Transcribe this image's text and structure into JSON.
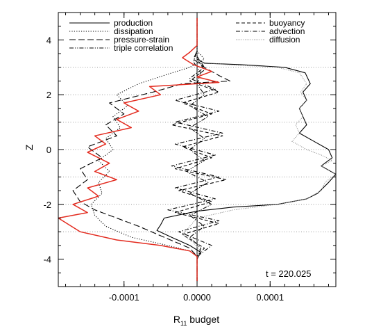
{
  "chart_data": {
    "type": "line",
    "xlabel_main": "R",
    "xlabel_sub": "11",
    "xlabel_rest": " budget",
    "ylabel": "Z",
    "annotation": "t = 220.025",
    "xlim": [
      -0.00019,
      0.00019
    ],
    "ylim": [
      -5,
      5
    ],
    "x_ticks": [
      {
        "value": -0.0001,
        "label": "-0.0001"
      },
      {
        "value": 0.0,
        "label": "0.0000"
      },
      {
        "value": 0.0001,
        "label": "0.0001"
      }
    ],
    "y_ticks": [
      {
        "value": -4,
        "label": "-4"
      },
      {
        "value": -2,
        "label": "-2"
      },
      {
        "value": 0,
        "label": "0"
      },
      {
        "value": 2,
        "label": "2"
      },
      {
        "value": 4,
        "label": "4"
      }
    ],
    "grid": "horizontal dotted lines at Z = -3, -2, -1, 0, 1, 2, 3",
    "grid_z": [
      -3,
      -2,
      -1,
      0,
      1,
      2,
      3
    ],
    "legend": [
      {
        "name": "production",
        "dash": "solid",
        "column": "left"
      },
      {
        "name": "dissipation",
        "dash": "dotted",
        "column": "left"
      },
      {
        "name": "pressure-strain",
        "dash": "long-dash",
        "column": "left"
      },
      {
        "name": "triple correlation",
        "dash": "dash-dot-dot",
        "column": "left"
      },
      {
        "name": "buoyancy",
        "dash": "dashed",
        "column": "right"
      },
      {
        "name": "advection",
        "dash": "dash-dot",
        "column": "right"
      },
      {
        "name": "diffusion",
        "dash": "dotted-gray",
        "column": "right"
      }
    ],
    "series": [
      {
        "name": "production",
        "color": "#000000",
        "dash": "solid",
        "points": [
          [
            0,
            -4.8
          ],
          [
            0,
            -4.0
          ],
          [
            5e-06,
            -3.75
          ],
          [
            -1e-05,
            -3.5
          ],
          [
            -3.5e-05,
            -3.2
          ],
          [
            -5.5e-05,
            -2.95
          ],
          [
            -5e-05,
            -2.75
          ],
          [
            -4.5e-05,
            -2.5
          ],
          [
            0.0,
            -2.25
          ],
          [
            5e-05,
            -2.1
          ],
          [
            0.00011,
            -2.0
          ],
          [
            0.00015,
            -1.8
          ],
          [
            0.000165,
            -1.6
          ],
          [
            0.00018,
            -1.2
          ],
          [
            0.00019,
            -0.9
          ],
          [
            0.00017,
            -0.6
          ],
          [
            0.000185,
            -0.3
          ],
          [
            0.00018,
            0.0
          ],
          [
            0.00016,
            0.3
          ],
          [
            0.00014,
            0.6
          ],
          [
            0.00015,
            0.9
          ],
          [
            0.000145,
            1.2
          ],
          [
            0.00014,
            1.5
          ],
          [
            0.00015,
            1.8
          ],
          [
            0.000145,
            2.1
          ],
          [
            0.000155,
            2.4
          ],
          [
            0.000148,
            2.8
          ],
          [
            0.00012,
            3.0
          ],
          [
            6e-05,
            3.1
          ],
          [
            1e-05,
            3.15
          ],
          [
            0.0,
            3.3
          ],
          [
            0.0,
            3.7
          ],
          [
            0,
            4.8
          ]
        ]
      },
      {
        "name": "dissipation",
        "color": "#000000",
        "dash": "dotted",
        "points": [
          [
            0,
            -4.8
          ],
          [
            0,
            -3.9
          ],
          [
            -1e-05,
            -3.7
          ],
          [
            -4e-05,
            -3.5
          ],
          [
            -9e-05,
            -3.2
          ],
          [
            -0.000125,
            -2.8
          ],
          [
            -0.00014,
            -2.4
          ],
          [
            -0.000145,
            -2.0
          ],
          [
            -0.00013,
            -1.6
          ],
          [
            -0.000135,
            -1.2
          ],
          [
            -0.00012,
            -0.8
          ],
          [
            -0.000135,
            -0.4
          ],
          [
            -0.000115,
            0.0
          ],
          [
            -0.000125,
            0.4
          ],
          [
            -0.000105,
            0.8
          ],
          [
            -0.000115,
            1.2
          ],
          [
            -9.5e-05,
            1.6
          ],
          [
            -0.00011,
            2.0
          ],
          [
            -8e-05,
            2.4
          ],
          [
            -4e-05,
            2.75
          ],
          [
            -1e-05,
            3.0
          ],
          [
            1e-05,
            3.3
          ],
          [
            0.0,
            3.6
          ],
          [
            0,
            4.8
          ]
        ]
      },
      {
        "name": "pressure-strain",
        "color": "#000000",
        "dash": "long-dash",
        "points": [
          [
            0,
            -4.8
          ],
          [
            0,
            -3.9
          ],
          [
            -1e-05,
            -3.6
          ],
          [
            -4.5e-05,
            -3.2
          ],
          [
            -8e-05,
            -2.8
          ],
          [
            -0.00011,
            -2.5
          ],
          [
            -0.00014,
            -2.2
          ],
          [
            -0.00016,
            -1.9
          ],
          [
            -0.00017,
            -1.5
          ],
          [
            -0.00015,
            -1.1
          ],
          [
            -0.00016,
            -0.7
          ],
          [
            -0.00013,
            -0.3
          ],
          [
            -0.00015,
            0.1
          ],
          [
            -0.00011,
            0.5
          ],
          [
            -0.000125,
            0.9
          ],
          [
            -0.0001,
            1.3
          ],
          [
            -0.00012,
            1.7
          ],
          [
            -6e-05,
            2.1
          ],
          [
            -2e-05,
            2.4
          ],
          [
            4.5e-05,
            2.5
          ],
          [
            3e-05,
            2.7
          ],
          [
            1e-05,
            3.0
          ],
          [
            -5e-06,
            3.3
          ],
          [
            0.0,
            3.6
          ],
          [
            0,
            4.8
          ]
        ]
      },
      {
        "name": "triple correlation",
        "color": "#000000",
        "dash": "dash-dot-dot",
        "points": [
          [
            0,
            -4.8
          ],
          [
            0,
            -4.0
          ],
          [
            5e-06,
            -3.6
          ],
          [
            -1e-05,
            -3.2
          ],
          [
            1e-05,
            -2.8
          ],
          [
            -1e-05,
            -2.4
          ],
          [
            2e-05,
            -2.0
          ],
          [
            -1e-05,
            -1.6
          ],
          [
            1.5e-05,
            -1.2
          ],
          [
            -1.5e-05,
            -0.8
          ],
          [
            1e-05,
            -0.4
          ],
          [
            -1e-05,
            0.0
          ],
          [
            1e-05,
            0.4
          ],
          [
            -1e-05,
            0.8
          ],
          [
            1.5e-05,
            1.2
          ],
          [
            -1e-05,
            1.6
          ],
          [
            1e-05,
            2.0
          ],
          [
            0.0,
            2.4
          ],
          [
            5e-06,
            2.8
          ],
          [
            -5e-06,
            3.2
          ],
          [
            0.0,
            3.6
          ],
          [
            0,
            4.8
          ]
        ]
      },
      {
        "name": "buoyancy",
        "color": "#000000",
        "dash": "dashed",
        "points": [
          [
            0,
            -4.8
          ],
          [
            0,
            -3.9
          ],
          [
            1e-05,
            -3.6
          ],
          [
            -2e-05,
            -3.1
          ],
          [
            3e-05,
            -2.7
          ],
          [
            -3e-05,
            -2.3
          ],
          [
            2e-05,
            -1.9
          ],
          [
            -2.5e-05,
            -1.5
          ],
          [
            4e-05,
            -1.1
          ],
          [
            -3e-05,
            -0.7
          ],
          [
            2e-05,
            -0.3
          ],
          [
            -2e-05,
            0.1
          ],
          [
            3.5e-05,
            0.5
          ],
          [
            -3.5e-05,
            0.9
          ],
          [
            2e-05,
            1.3
          ],
          [
            -2e-05,
            1.7
          ],
          [
            3e-05,
            2.1
          ],
          [
            -1e-05,
            2.5
          ],
          [
            1e-05,
            2.9
          ],
          [
            0.0,
            3.3
          ],
          [
            0.0,
            3.6
          ],
          [
            0,
            4.8
          ]
        ]
      },
      {
        "name": "advection",
        "color": "#000000",
        "dash": "dash-dot",
        "points": [
          [
            0,
            -4.8
          ],
          [
            0,
            -3.9
          ],
          [
            2e-05,
            -3.5
          ],
          [
            -2.5e-05,
            -3.0
          ],
          [
            3e-05,
            -2.6
          ],
          [
            -4e-05,
            -2.2
          ],
          [
            2.5e-05,
            -1.8
          ],
          [
            -3e-05,
            -1.4
          ],
          [
            3e-05,
            -1.0
          ],
          [
            -3.5e-05,
            -0.6
          ],
          [
            2.5e-05,
            -0.2
          ],
          [
            -3e-05,
            0.2
          ],
          [
            3.5e-05,
            0.6
          ],
          [
            -3e-05,
            1.0
          ],
          [
            3e-05,
            1.4
          ],
          [
            -3e-05,
            1.8
          ],
          [
            2.5e-05,
            2.2
          ],
          [
            -1e-05,
            2.6
          ],
          [
            1e-05,
            3.0
          ],
          [
            0.0,
            3.4
          ],
          [
            0,
            4.8
          ]
        ]
      },
      {
        "name": "diffusion",
        "color": "#8c8c8c",
        "dash": "dotted-gray",
        "points": [
          [
            0,
            -4.8
          ],
          [
            0,
            -4.0
          ],
          [
            5e-06,
            -3.7
          ],
          [
            -5e-06,
            -3.4
          ],
          [
            -2e-05,
            -3.1
          ],
          [
            -1e-05,
            -2.8
          ],
          [
            0.0,
            -2.5
          ],
          [
            5e-05,
            -2.2
          ],
          [
            0.00011,
            -2.0
          ],
          [
            0.00015,
            -1.8
          ],
          [
            0.00017,
            -1.5
          ],
          [
            0.000175,
            -1.2
          ],
          [
            0.00019,
            -0.9
          ],
          [
            0.00017,
            -0.6
          ],
          [
            0.000185,
            -0.4
          ],
          [
            0.00017,
            -0.2
          ],
          [
            0.00015,
            0.0
          ],
          [
            0.00013,
            0.3
          ],
          [
            0.00014,
            0.6
          ],
          [
            0.000135,
            0.9
          ],
          [
            0.000145,
            1.2
          ],
          [
            0.00014,
            1.5
          ],
          [
            0.00015,
            1.8
          ],
          [
            0.000142,
            2.1
          ],
          [
            0.00015,
            2.4
          ],
          [
            0.00014,
            2.8
          ],
          [
            0.00011,
            3.0
          ],
          [
            4e-05,
            3.1
          ],
          [
            0.0,
            3.2
          ],
          [
            0.0,
            3.7
          ],
          [
            0,
            4.8
          ]
        ]
      },
      {
        "name": "",
        "color": "#e32b1f",
        "dash": "solid",
        "points": [
          [
            0,
            -4.8
          ],
          [
            0,
            -3.9
          ],
          [
            -1e-05,
            -3.7
          ],
          [
            -5e-05,
            -3.5
          ],
          [
            -0.00011,
            -3.3
          ],
          [
            -0.00016,
            -3.0
          ],
          [
            -0.00019,
            -2.5
          ],
          [
            -0.00015,
            -2.3
          ],
          [
            -0.00017,
            -2.0
          ],
          [
            -0.000135,
            -1.7
          ],
          [
            -0.00015,
            -1.4
          ],
          [
            -0.00011,
            -1.1
          ],
          [
            -0.00014,
            -0.8
          ],
          [
            -0.00012,
            -0.5
          ],
          [
            -0.00015,
            -0.1
          ],
          [
            -0.000125,
            0.2
          ],
          [
            -0.00014,
            0.5
          ],
          [
            -9e-05,
            0.8
          ],
          [
            -0.00011,
            1.1
          ],
          [
            -8e-05,
            1.4
          ],
          [
            -0.0001,
            1.7
          ],
          [
            -5e-05,
            2.0
          ],
          [
            -6.5e-05,
            2.3
          ],
          [
            3e-05,
            2.45
          ],
          [
            0.0,
            2.65
          ],
          [
            2e-05,
            2.85
          ],
          [
            -5e-06,
            3.1
          ],
          [
            -2e-05,
            3.35
          ],
          [
            -1e-05,
            3.55
          ],
          [
            0.0,
            3.8
          ],
          [
            0,
            4.8
          ]
        ]
      }
    ]
  }
}
